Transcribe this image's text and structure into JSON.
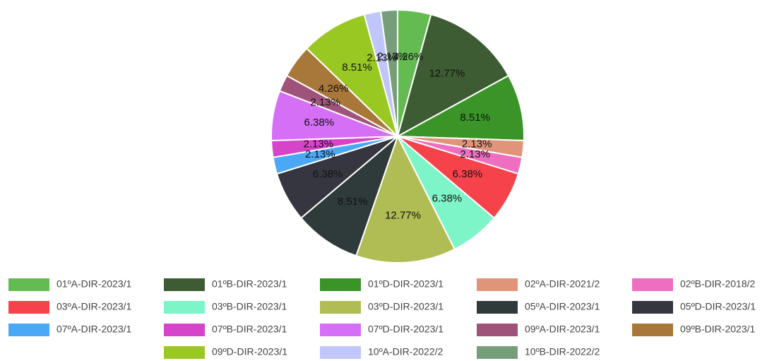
{
  "chart_data": {
    "type": "pie",
    "categories": [
      "01ºA-DIR-2023/1",
      "01ºB-DIR-2023/1",
      "01ºD-DIR-2023/1",
      "02ºA-DIR-2021/2",
      "02ºB-DIR-2018/2",
      "03ºA-DIR-2023/1",
      "03ºB-DIR-2023/1",
      "03ºD-DIR-2023/1",
      "05ºA-DIR-2023/1",
      "05ºD-DIR-2023/1",
      "07ºA-DIR-2023/1",
      "07ºB-DIR-2023/1",
      "07ºD-DIR-2023/1",
      "09ºA-DIR-2023/1",
      "09ºB-DIR-2023/1",
      "09ºD-DIR-2023/1",
      "10ºA-DIR-2022/2",
      "10ºB-DIR-2022/2"
    ],
    "values": [
      4.26,
      12.77,
      8.51,
      2.13,
      2.13,
      6.38,
      6.38,
      12.77,
      8.51,
      6.38,
      2.13,
      2.13,
      6.38,
      2.13,
      4.26,
      8.51,
      2.13,
      2.13
    ],
    "value_labels": [
      "4.26%",
      "12.77%",
      "8.51%",
      "2.13%",
      "2.13%",
      "6.38%",
      "6.38%",
      "12.77%",
      "8.51%",
      "6.38%",
      "2.13%",
      "2.13%",
      "6.38%",
      "2.13%",
      "4.26%",
      "8.51%",
      "2.13%",
      "2.13%"
    ],
    "colors": [
      "#63bb52",
      "#3d5c33",
      "#3a9428",
      "#e0957a",
      "#ee6fc0",
      "#f6434b",
      "#7ef5c8",
      "#b0bc54",
      "#2f3a3a",
      "#363640",
      "#4aa8f5",
      "#d544c9",
      "#d56ff5",
      "#a0537a",
      "#a8783a",
      "#9ac823",
      "#c0c6fa",
      "#779e7a"
    ],
    "legend": "bottom"
  }
}
